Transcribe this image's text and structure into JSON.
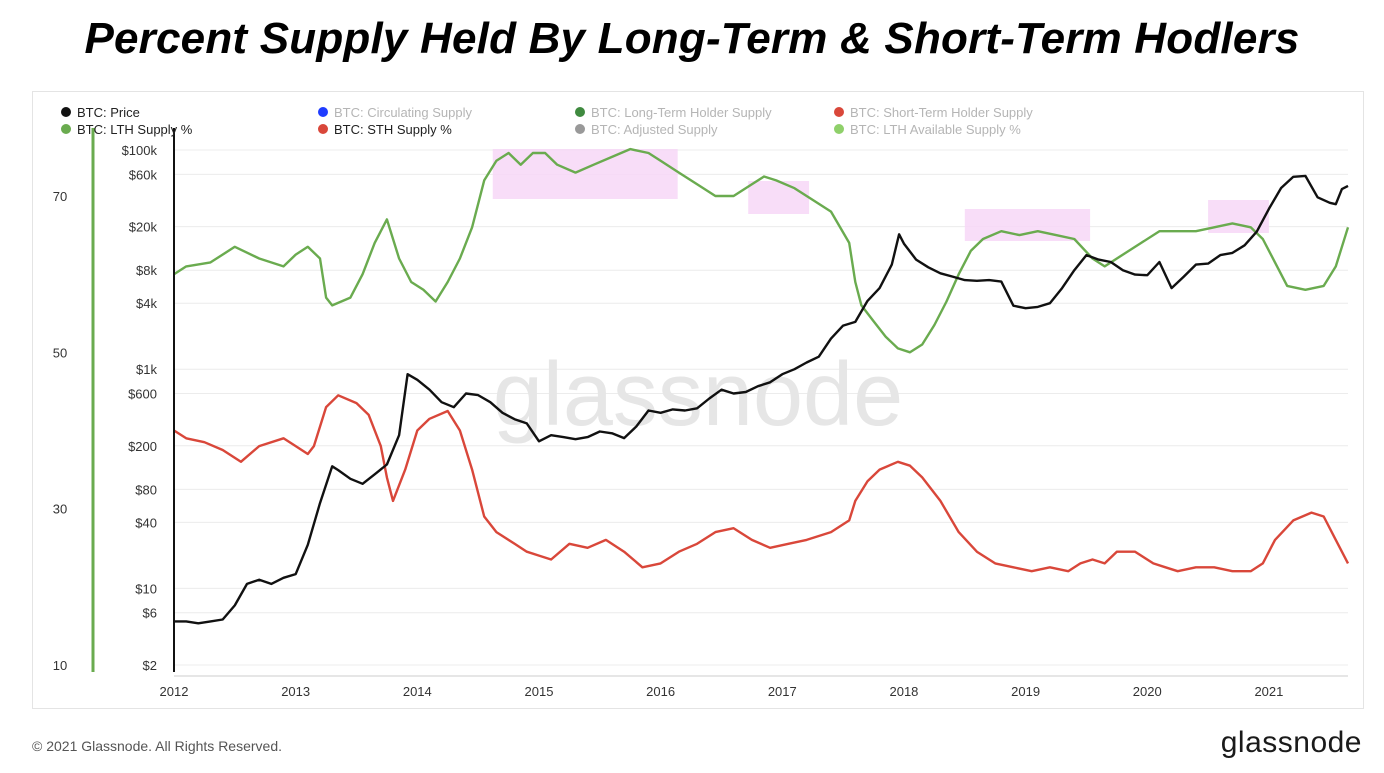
{
  "title": "Percent Supply Held By Long-Term & Short-Term Hodlers",
  "footer": {
    "copyright": "© 2021 Glassnode. All Rights Reserved.",
    "logo": "glassnode"
  },
  "watermark": "glassnode",
  "chart_data": {
    "type": "line",
    "legend": [
      {
        "name": "BTC: Price",
        "color": "#111111",
        "active": true
      },
      {
        "name": "BTC: Circulating Supply",
        "color": "#1f3cff",
        "active": false
      },
      {
        "name": "BTC: Long-Term Holder Supply",
        "color": "#3f8a3f",
        "active": false
      },
      {
        "name": "BTC: Short-Term Holder Supply",
        "color": "#d9473a",
        "active": false
      },
      {
        "name": "BTC: LTH Supply %",
        "color": "#6aab4f",
        "active": true
      },
      {
        "name": "BTC: STH Supply %",
        "color": "#d9473a",
        "active": true
      },
      {
        "name": "BTC: Adjusted Supply",
        "color": "#999999",
        "active": false
      },
      {
        "name": "BTC: LTH Available Supply %",
        "color": "#8fd06a",
        "active": false
      }
    ],
    "x_ticks": [
      "2012",
      "2013",
      "2014",
      "2015",
      "2016",
      "2017",
      "2018",
      "2019",
      "2020",
      "2021"
    ],
    "y_left_ticks": [
      "70",
      "50",
      "30",
      "10"
    ],
    "y_left_values": [
      70,
      50,
      30,
      10
    ],
    "y_left_range": [
      10,
      80
    ],
    "y_price_ticks": [
      "$100k",
      "$60k",
      "$20k",
      "$8k",
      "$4k",
      "$1k",
      "$600",
      "$200",
      "$80",
      "$40",
      "$10",
      "$6",
      "$2"
    ],
    "y_price_values": [
      100000,
      60000,
      20000,
      8000,
      4000,
      1000,
      600,
      200,
      80,
      40,
      10,
      6,
      2
    ],
    "y_price_scale": "log",
    "y_price_range": [
      2,
      100000
    ],
    "x_range": [
      2012.0,
      2021.65
    ],
    "highlights": [
      [
        2014.62,
        2016.14
      ],
      [
        2016.72,
        2017.22
      ],
      [
        2018.5,
        2019.53
      ],
      [
        2020.5,
        2021.0
      ]
    ],
    "highlight_color": "#f7d7f7",
    "series": [
      {
        "name": "BTC: LTH Supply %",
        "axis": "left",
        "color": "#6aab4f",
        "points": [
          [
            2012.0,
            60.0
          ],
          [
            2012.1,
            61.0
          ],
          [
            2012.3,
            61.5
          ],
          [
            2012.5,
            63.5
          ],
          [
            2012.7,
            62.0
          ],
          [
            2012.9,
            61.0
          ],
          [
            2013.0,
            62.5
          ],
          [
            2013.1,
            63.5
          ],
          [
            2013.2,
            62.0
          ],
          [
            2013.25,
            57.0
          ],
          [
            2013.3,
            56.0
          ],
          [
            2013.45,
            57.0
          ],
          [
            2013.55,
            60.0
          ],
          [
            2013.65,
            64.0
          ],
          [
            2013.75,
            67.0
          ],
          [
            2013.85,
            62.0
          ],
          [
            2013.95,
            59.0
          ],
          [
            2014.05,
            58.0
          ],
          [
            2014.15,
            56.5
          ],
          [
            2014.25,
            59.0
          ],
          [
            2014.35,
            62.0
          ],
          [
            2014.45,
            66.0
          ],
          [
            2014.55,
            72.0
          ],
          [
            2014.65,
            74.5
          ],
          [
            2014.75,
            75.5
          ],
          [
            2014.85,
            74.0
          ],
          [
            2014.95,
            75.5
          ],
          [
            2015.05,
            75.5
          ],
          [
            2015.15,
            74.0
          ],
          [
            2015.3,
            73.0
          ],
          [
            2015.45,
            74.0
          ],
          [
            2015.6,
            75.0
          ],
          [
            2015.75,
            76.0
          ],
          [
            2015.9,
            75.5
          ],
          [
            2016.0,
            74.5
          ],
          [
            2016.15,
            73.0
          ],
          [
            2016.3,
            71.5
          ],
          [
            2016.45,
            70.0
          ],
          [
            2016.6,
            70.0
          ],
          [
            2016.75,
            71.5
          ],
          [
            2016.85,
            72.5
          ],
          [
            2016.95,
            72.0
          ],
          [
            2017.1,
            71.0
          ],
          [
            2017.25,
            69.5
          ],
          [
            2017.4,
            68.0
          ],
          [
            2017.55,
            64.0
          ],
          [
            2017.6,
            59.0
          ],
          [
            2017.65,
            56.0
          ],
          [
            2017.75,
            54.0
          ],
          [
            2017.85,
            52.0
          ],
          [
            2017.95,
            50.5
          ],
          [
            2018.05,
            50.0
          ],
          [
            2018.15,
            51.0
          ],
          [
            2018.25,
            53.5
          ],
          [
            2018.35,
            56.5
          ],
          [
            2018.45,
            60.0
          ],
          [
            2018.55,
            63.0
          ],
          [
            2018.65,
            64.5
          ],
          [
            2018.8,
            65.5
          ],
          [
            2018.95,
            65.0
          ],
          [
            2019.1,
            65.5
          ],
          [
            2019.25,
            65.0
          ],
          [
            2019.4,
            64.5
          ],
          [
            2019.55,
            62.0
          ],
          [
            2019.65,
            61.0
          ],
          [
            2019.8,
            62.5
          ],
          [
            2019.95,
            64.0
          ],
          [
            2020.1,
            65.5
          ],
          [
            2020.25,
            65.5
          ],
          [
            2020.4,
            65.5
          ],
          [
            2020.55,
            66.0
          ],
          [
            2020.7,
            66.5
          ],
          [
            2020.85,
            66.0
          ],
          [
            2020.95,
            64.5
          ],
          [
            2021.05,
            61.5
          ],
          [
            2021.15,
            58.5
          ],
          [
            2021.3,
            58.0
          ],
          [
            2021.45,
            58.5
          ],
          [
            2021.55,
            61.0
          ],
          [
            2021.65,
            66.0
          ]
        ]
      },
      {
        "name": "BTC: STH Supply %",
        "axis": "left",
        "color": "#d9473a",
        "points": [
          [
            2012.0,
            40.0
          ],
          [
            2012.1,
            39.0
          ],
          [
            2012.25,
            38.5
          ],
          [
            2012.4,
            37.5
          ],
          [
            2012.55,
            36.0
          ],
          [
            2012.7,
            38.0
          ],
          [
            2012.9,
            39.0
          ],
          [
            2013.0,
            38.0
          ],
          [
            2013.1,
            37.0
          ],
          [
            2013.15,
            38.0
          ],
          [
            2013.25,
            43.0
          ],
          [
            2013.35,
            44.5
          ],
          [
            2013.5,
            43.5
          ],
          [
            2013.6,
            42.0
          ],
          [
            2013.7,
            38.0
          ],
          [
            2013.75,
            34.0
          ],
          [
            2013.8,
            31.0
          ],
          [
            2013.9,
            35.0
          ],
          [
            2014.0,
            40.0
          ],
          [
            2014.1,
            41.5
          ],
          [
            2014.25,
            42.5
          ],
          [
            2014.35,
            40.0
          ],
          [
            2014.45,
            35.0
          ],
          [
            2014.55,
            29.0
          ],
          [
            2014.65,
            27.0
          ],
          [
            2014.8,
            25.5
          ],
          [
            2014.9,
            24.5
          ],
          [
            2015.0,
            24.0
          ],
          [
            2015.1,
            23.5
          ],
          [
            2015.25,
            25.5
          ],
          [
            2015.4,
            25.0
          ],
          [
            2015.55,
            26.0
          ],
          [
            2015.7,
            24.5
          ],
          [
            2015.85,
            22.5
          ],
          [
            2016.0,
            23.0
          ],
          [
            2016.15,
            24.5
          ],
          [
            2016.3,
            25.5
          ],
          [
            2016.45,
            27.0
          ],
          [
            2016.6,
            27.5
          ],
          [
            2016.75,
            26.0
          ],
          [
            2016.9,
            25.0
          ],
          [
            2017.05,
            25.5
          ],
          [
            2017.2,
            26.0
          ],
          [
            2017.4,
            27.0
          ],
          [
            2017.55,
            28.5
          ],
          [
            2017.6,
            31.0
          ],
          [
            2017.7,
            33.5
          ],
          [
            2017.8,
            35.0
          ],
          [
            2017.95,
            36.0
          ],
          [
            2018.05,
            35.5
          ],
          [
            2018.15,
            34.0
          ],
          [
            2018.3,
            31.0
          ],
          [
            2018.45,
            27.0
          ],
          [
            2018.6,
            24.5
          ],
          [
            2018.75,
            23.0
          ],
          [
            2018.9,
            22.5
          ],
          [
            2019.05,
            22.0
          ],
          [
            2019.2,
            22.5
          ],
          [
            2019.35,
            22.0
          ],
          [
            2019.45,
            23.0
          ],
          [
            2019.55,
            23.5
          ],
          [
            2019.65,
            23.0
          ],
          [
            2019.75,
            24.5
          ],
          [
            2019.9,
            24.5
          ],
          [
            2020.05,
            23.0
          ],
          [
            2020.15,
            22.5
          ],
          [
            2020.25,
            22.0
          ],
          [
            2020.4,
            22.5
          ],
          [
            2020.55,
            22.5
          ],
          [
            2020.7,
            22.0
          ],
          [
            2020.85,
            22.0
          ],
          [
            2020.95,
            23.0
          ],
          [
            2021.05,
            26.0
          ],
          [
            2021.2,
            28.5
          ],
          [
            2021.35,
            29.5
          ],
          [
            2021.45,
            29.0
          ],
          [
            2021.55,
            26.0
          ],
          [
            2021.65,
            23.0
          ]
        ]
      },
      {
        "name": "BTC: Price",
        "axis": "price",
        "color": "#111111",
        "points": [
          [
            2012.0,
            5
          ],
          [
            2012.1,
            5
          ],
          [
            2012.2,
            4.8
          ],
          [
            2012.3,
            5
          ],
          [
            2012.4,
            5.2
          ],
          [
            2012.5,
            7
          ],
          [
            2012.6,
            11
          ],
          [
            2012.7,
            12
          ],
          [
            2012.8,
            11
          ],
          [
            2012.9,
            12.5
          ],
          [
            2013.0,
            13.5
          ],
          [
            2013.1,
            25
          ],
          [
            2013.2,
            60
          ],
          [
            2013.3,
            130
          ],
          [
            2013.35,
            120
          ],
          [
            2013.45,
            100
          ],
          [
            2013.55,
            90
          ],
          [
            2013.65,
            110
          ],
          [
            2013.75,
            135
          ],
          [
            2013.85,
            250
          ],
          [
            2013.92,
            900
          ],
          [
            2014.0,
            800
          ],
          [
            2014.1,
            650
          ],
          [
            2014.2,
            500
          ],
          [
            2014.3,
            450
          ],
          [
            2014.4,
            600
          ],
          [
            2014.5,
            580
          ],
          [
            2014.6,
            500
          ],
          [
            2014.7,
            400
          ],
          [
            2014.8,
            350
          ],
          [
            2014.9,
            320
          ],
          [
            2015.0,
            220
          ],
          [
            2015.1,
            250
          ],
          [
            2015.2,
            240
          ],
          [
            2015.3,
            230
          ],
          [
            2015.4,
            240
          ],
          [
            2015.5,
            270
          ],
          [
            2015.6,
            260
          ],
          [
            2015.7,
            235
          ],
          [
            2015.8,
            300
          ],
          [
            2015.9,
            420
          ],
          [
            2016.0,
            400
          ],
          [
            2016.1,
            430
          ],
          [
            2016.2,
            420
          ],
          [
            2016.3,
            440
          ],
          [
            2016.4,
            540
          ],
          [
            2016.5,
            650
          ],
          [
            2016.6,
            600
          ],
          [
            2016.7,
            620
          ],
          [
            2016.8,
            700
          ],
          [
            2016.9,
            760
          ],
          [
            2017.0,
            900
          ],
          [
            2017.1,
            1000
          ],
          [
            2017.2,
            1150
          ],
          [
            2017.3,
            1300
          ],
          [
            2017.4,
            1900
          ],
          [
            2017.5,
            2500
          ],
          [
            2017.6,
            2700
          ],
          [
            2017.7,
            4200
          ],
          [
            2017.8,
            5500
          ],
          [
            2017.9,
            9000
          ],
          [
            2017.96,
            17000
          ],
          [
            2018.0,
            14000
          ],
          [
            2018.1,
            10000
          ],
          [
            2018.2,
            8500
          ],
          [
            2018.3,
            7500
          ],
          [
            2018.4,
            7000
          ],
          [
            2018.5,
            6500
          ],
          [
            2018.6,
            6400
          ],
          [
            2018.7,
            6500
          ],
          [
            2018.8,
            6300
          ],
          [
            2018.9,
            3800
          ],
          [
            2019.0,
            3600
          ],
          [
            2019.1,
            3700
          ],
          [
            2019.2,
            4000
          ],
          [
            2019.3,
            5500
          ],
          [
            2019.4,
            8000
          ],
          [
            2019.5,
            11000
          ],
          [
            2019.6,
            10000
          ],
          [
            2019.7,
            9500
          ],
          [
            2019.8,
            8000
          ],
          [
            2019.9,
            7300
          ],
          [
            2020.0,
            7200
          ],
          [
            2020.1,
            9500
          ],
          [
            2020.2,
            5500
          ],
          [
            2020.3,
            7000
          ],
          [
            2020.4,
            9000
          ],
          [
            2020.5,
            9200
          ],
          [
            2020.6,
            11000
          ],
          [
            2020.7,
            11500
          ],
          [
            2020.8,
            13500
          ],
          [
            2020.9,
            18000
          ],
          [
            2021.0,
            29000
          ],
          [
            2021.1,
            45000
          ],
          [
            2021.2,
            57000
          ],
          [
            2021.3,
            58000
          ],
          [
            2021.4,
            37000
          ],
          [
            2021.5,
            33000
          ],
          [
            2021.55,
            32000
          ],
          [
            2021.6,
            44000
          ],
          [
            2021.65,
            47000
          ]
        ]
      }
    ]
  }
}
